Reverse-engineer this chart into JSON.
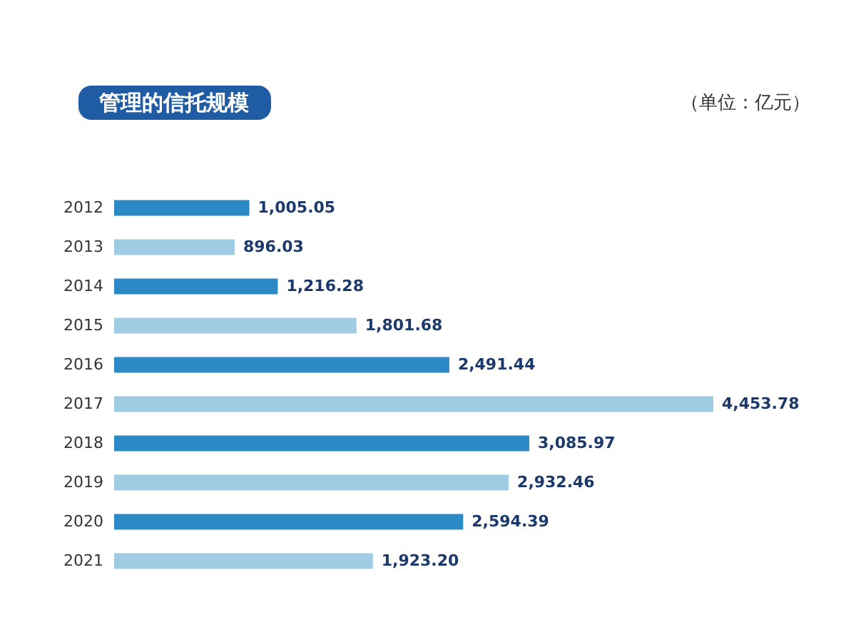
{
  "chart_data": {
    "type": "bar",
    "orientation": "horizontal",
    "title": "管理的信托规模",
    "subtitle": "（单位：亿元）",
    "categories": [
      "2012",
      "2013",
      "2014",
      "2015",
      "2016",
      "2017",
      "2018",
      "2019",
      "2020",
      "2021"
    ],
    "values": [
      1005.05,
      896.03,
      1216.28,
      1801.68,
      2491.44,
      4453.78,
      3085.97,
      2932.46,
      2594.39,
      1923.2
    ],
    "colors": [
      "#2b8ac6",
      "#9fcbe3",
      "#2b8ac6",
      "#9fcbe3",
      "#2b8ac6",
      "#9fcbe3",
      "#2b8ac6",
      "#9fcbe3",
      "#2b8ac6",
      "#9fcbe3"
    ],
    "value_labels": [
      "1,005.05",
      "896.03",
      "1,216.28",
      "1,801.68",
      "2,491.44",
      "4,453.78",
      "3,085.97",
      "2,932.46",
      "2,594.39",
      "1,923.20"
    ]
  }
}
